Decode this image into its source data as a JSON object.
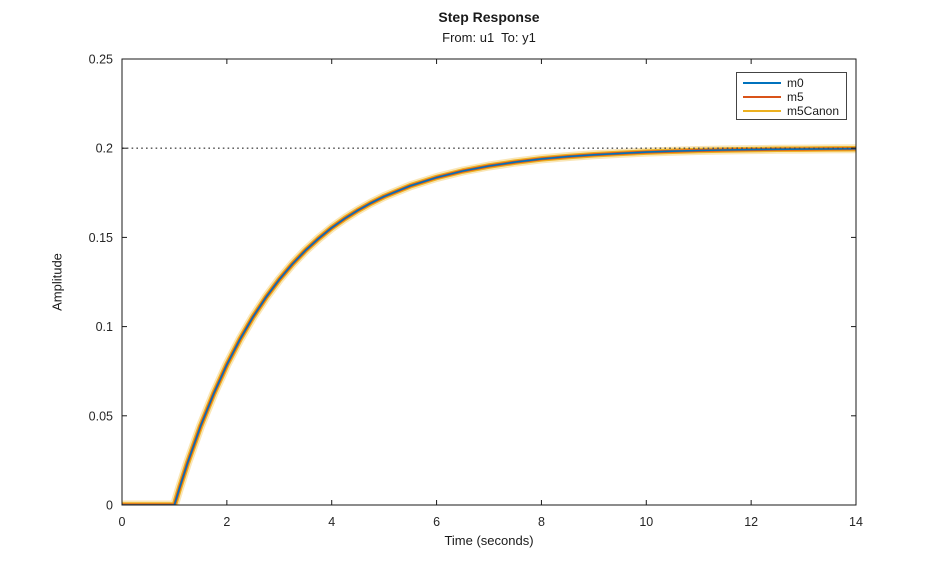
{
  "chart_data": {
    "type": "line",
    "title": "Step Response",
    "subtitle": "From: u1  To: y1",
    "xlabel": "Time (seconds)",
    "ylabel": "Amplitude",
    "xlim": [
      0,
      14
    ],
    "ylim": [
      0,
      0.25
    ],
    "xticks": [
      0,
      2,
      4,
      6,
      8,
      10,
      12,
      14
    ],
    "yticks": [
      0,
      0.05,
      0.1,
      0.15,
      0.2,
      0.25
    ],
    "grid": false,
    "legend_position": "top-right-inside",
    "steady_state_value": 0.2,
    "x": [
      0,
      0.5,
      0.9,
      1,
      1.1,
      1.25,
      1.5,
      1.75,
      2,
      2.25,
      2.5,
      2.75,
      3,
      3.25,
      3.5,
      3.75,
      4,
      4.25,
      4.5,
      4.75,
      5,
      5.5,
      6,
      6.5,
      7,
      7.5,
      8,
      8.5,
      9,
      9.5,
      10,
      10.5,
      11,
      11.5,
      12,
      12.5,
      13,
      13.5,
      14
    ],
    "series": [
      {
        "name": "m0",
        "color": "#0072BD",
        "has_confidence_band": false,
        "values": [
          0,
          0,
          0,
          0,
          0.0098,
          0.0235,
          0.0442,
          0.0625,
          0.0787,
          0.0929,
          0.1055,
          0.1166,
          0.1264,
          0.1351,
          0.1427,
          0.1494,
          0.1554,
          0.1606,
          0.1652,
          0.1693,
          0.1729,
          0.1789,
          0.1836,
          0.1872,
          0.19,
          0.1922,
          0.194,
          0.1953,
          0.1963,
          0.1971,
          0.1978,
          0.1983,
          0.1987,
          0.199,
          0.1992,
          0.1994,
          0.1995,
          0.1996,
          0.1997
        ]
      },
      {
        "name": "m5",
        "color": "#D95319",
        "has_confidence_band": true,
        "values": [
          0,
          0,
          0,
          0,
          0.0098,
          0.0235,
          0.0442,
          0.0625,
          0.0787,
          0.0929,
          0.1055,
          0.1166,
          0.1264,
          0.1351,
          0.1427,
          0.1494,
          0.1554,
          0.1606,
          0.1652,
          0.1693,
          0.1729,
          0.1789,
          0.1836,
          0.1872,
          0.19,
          0.1922,
          0.194,
          0.1953,
          0.1963,
          0.1971,
          0.1978,
          0.1983,
          0.1987,
          0.199,
          0.1992,
          0.1994,
          0.1995,
          0.1996,
          0.1997
        ]
      },
      {
        "name": "m5Canon",
        "color": "#EDB120",
        "has_confidence_band": true,
        "values": [
          0,
          0,
          0,
          0,
          0.0098,
          0.0235,
          0.0442,
          0.0625,
          0.0787,
          0.0929,
          0.1055,
          0.1166,
          0.1264,
          0.1351,
          0.1427,
          0.1494,
          0.1554,
          0.1606,
          0.1652,
          0.1693,
          0.1729,
          0.1789,
          0.1836,
          0.1872,
          0.19,
          0.1922,
          0.194,
          0.1953,
          0.1963,
          0.1971,
          0.1978,
          0.1983,
          0.1987,
          0.199,
          0.1992,
          0.1994,
          0.1995,
          0.1996,
          0.1997
        ]
      }
    ],
    "colors": {
      "axes": "#1a1a1a",
      "tick_label": "#262626",
      "steady_state_line": "#4d4d4d",
      "confidence_halo": "rgba(237,177,32,0.32)"
    }
  }
}
